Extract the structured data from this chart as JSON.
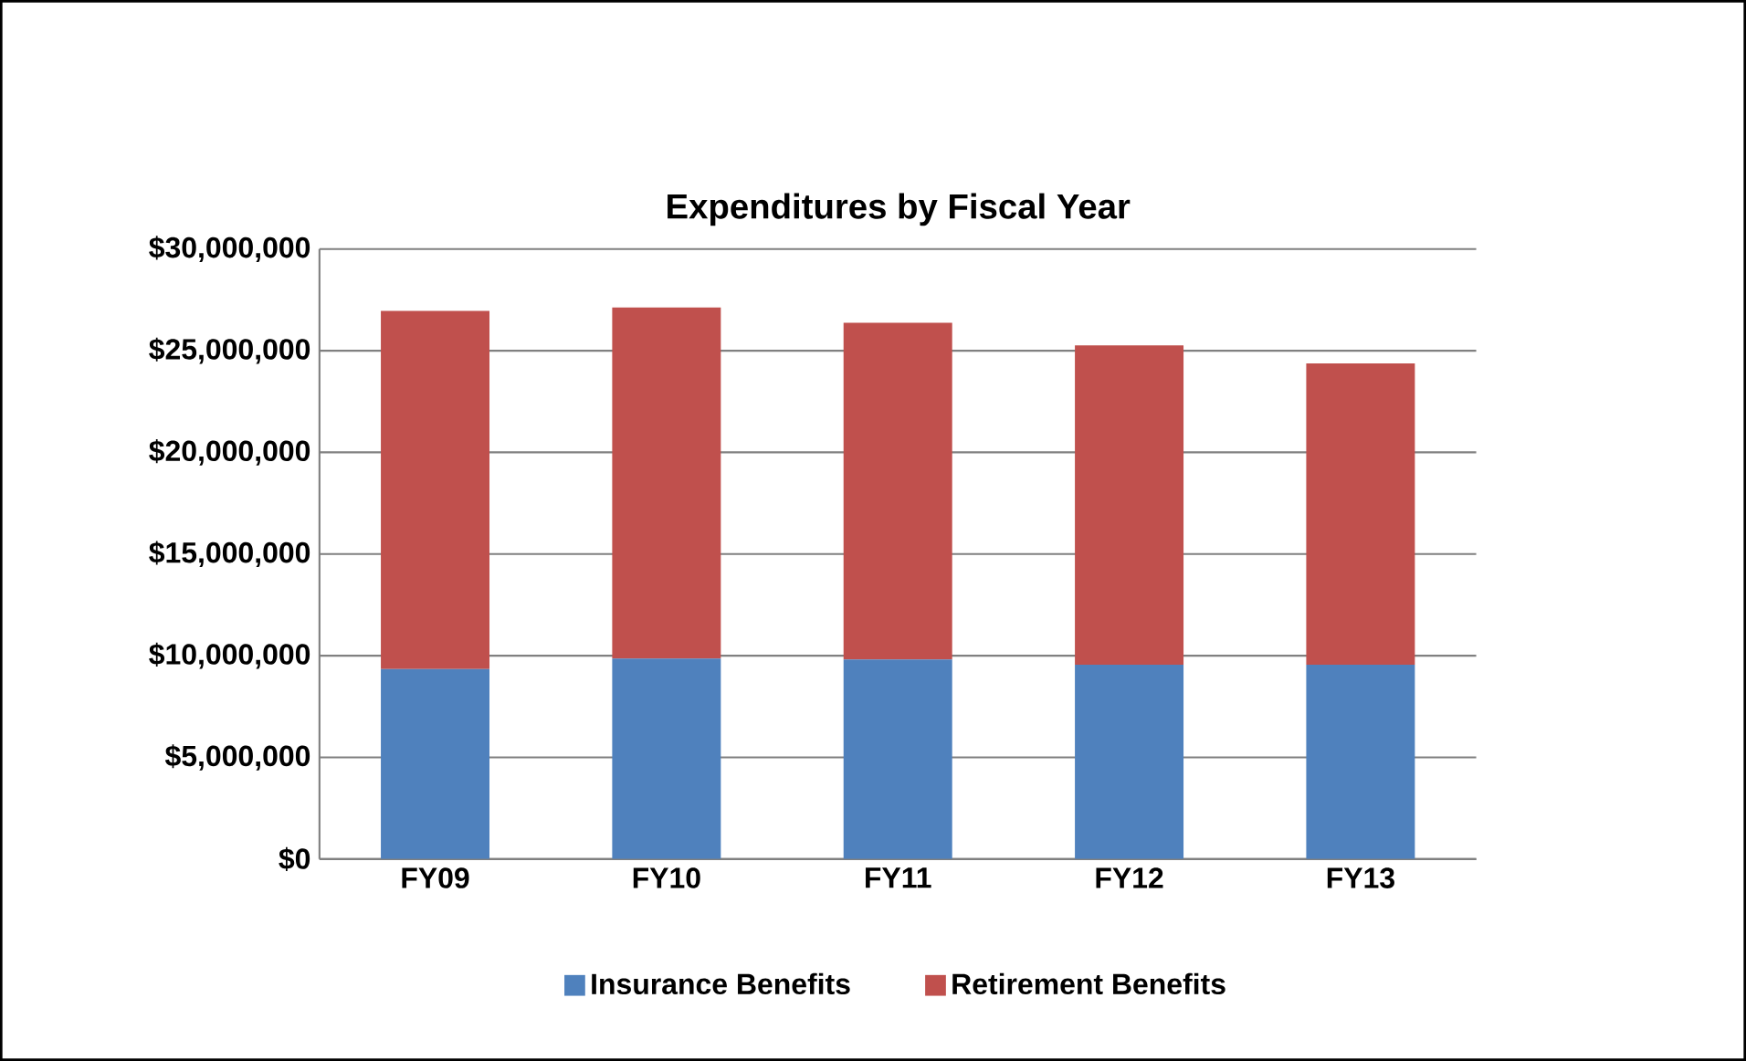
{
  "chart_data": {
    "type": "bar",
    "stacked": true,
    "title": "Expenditures by Fiscal Year",
    "categories": [
      "FY09",
      "FY10",
      "FY11",
      "FY12",
      "FY13"
    ],
    "series": [
      {
        "name": "Insurance Benefits",
        "color": "#4f81bd",
        "values": [
          9340000,
          9860000,
          9810000,
          9560000,
          9560000
        ]
      },
      {
        "name": "Retirement Benefits",
        "color": "#c0504d",
        "values": [
          17620000,
          17270000,
          16560000,
          15700000,
          14810000
        ]
      }
    ],
    "ylim": [
      0,
      30000000
    ],
    "yticks": [
      {
        "value": 0,
        "label": "$0"
      },
      {
        "value": 5000000,
        "label": "$5,000,000"
      },
      {
        "value": 10000000,
        "label": "$10,000,000"
      },
      {
        "value": 15000000,
        "label": "$15,000,000"
      },
      {
        "value": 20000000,
        "label": "$20,000,000"
      },
      {
        "value": 25000000,
        "label": "$25,000,000"
      },
      {
        "value": 30000000,
        "label": "$30,000,000"
      }
    ],
    "grid": "y",
    "legend": "bottom"
  }
}
